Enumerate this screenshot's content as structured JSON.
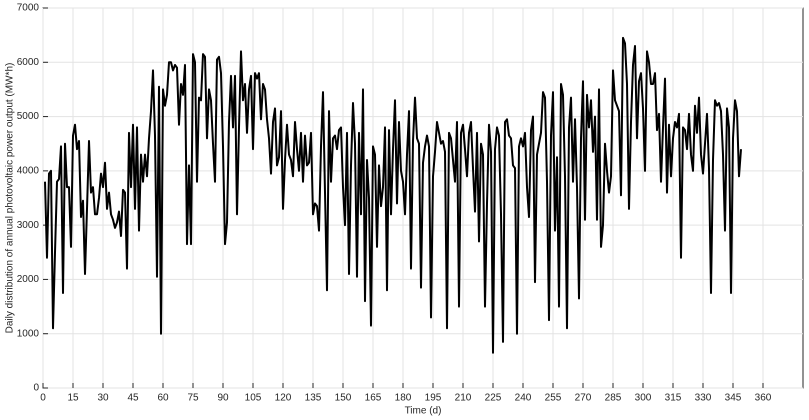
{
  "chart_data": {
    "type": "line",
    "x_label": "Time (d)",
    "y_label": "Daily distribution of annual photovoltaic power output (MW*h)",
    "color": "#000000",
    "grid": true,
    "xlim": [
      0,
      380
    ],
    "ylim": [
      0,
      7000
    ],
    "xticks": [
      0,
      15,
      30,
      45,
      60,
      75,
      90,
      105,
      120,
      135,
      150,
      165,
      180,
      195,
      210,
      225,
      240,
      255,
      270,
      285,
      300,
      315,
      330,
      345,
      360
    ],
    "yticks": [
      0,
      1000,
      2000,
      3000,
      4000,
      5000,
      6000,
      7000
    ],
    "x": [
      1,
      2,
      3,
      4,
      5,
      6,
      7,
      8,
      9,
      10,
      11,
      12,
      13,
      14,
      15,
      16,
      17,
      18,
      19,
      20,
      21,
      22,
      23,
      24,
      25,
      26,
      27,
      28,
      29,
      30,
      31,
      32,
      33,
      34,
      35,
      36,
      37,
      38,
      39,
      40,
      41,
      42,
      43,
      44,
      45,
      46,
      47,
      48,
      49,
      50,
      51,
      52,
      53,
      54,
      55,
      56,
      57,
      58,
      59,
      60,
      61,
      62,
      63,
      64,
      65,
      66,
      67,
      68,
      69,
      70,
      71,
      72,
      73,
      74,
      75,
      76,
      77,
      78,
      79,
      80,
      81,
      82,
      83,
      84,
      85,
      86,
      87,
      88,
      89,
      90,
      91,
      92,
      93,
      94,
      95,
      96,
      97,
      98,
      99,
      100,
      101,
      102,
      103,
      104,
      105,
      106,
      107,
      108,
      109,
      110,
      111,
      112,
      113,
      114,
      115,
      116,
      117,
      118,
      119,
      120,
      121,
      122,
      123,
      124,
      125,
      126,
      127,
      128,
      129,
      130,
      131,
      132,
      133,
      134,
      135,
      136,
      137,
      138,
      139,
      140,
      141,
      142,
      143,
      144,
      145,
      146,
      147,
      148,
      149,
      150,
      151,
      152,
      153,
      154,
      155,
      156,
      157,
      158,
      159,
      160,
      161,
      162,
      163,
      164,
      165,
      166,
      167,
      168,
      169,
      170,
      171,
      172,
      173,
      174,
      175,
      176,
      177,
      178,
      179,
      180,
      181,
      182,
      183,
      184,
      185,
      186,
      187,
      188,
      189,
      190,
      191,
      192,
      193,
      194,
      195,
      196,
      197,
      198,
      199,
      200,
      201,
      202,
      203,
      204,
      205,
      206,
      207,
      208,
      209,
      210,
      211,
      212,
      213,
      214,
      215,
      216,
      217,
      218,
      219,
      220,
      221,
      222,
      223,
      224,
      225,
      226,
      227,
      228,
      229,
      230,
      231,
      232,
      233,
      234,
      235,
      236,
      237,
      238,
      239,
      240,
      241,
      242,
      243,
      244,
      245,
      246,
      247,
      248,
      249,
      250,
      251,
      252,
      253,
      254,
      255,
      256,
      257,
      258,
      259,
      260,
      261,
      262,
      263,
      264,
      265,
      266,
      267,
      268,
      269,
      270,
      271,
      272,
      273,
      274,
      275,
      276,
      277,
      278,
      279,
      280,
      281,
      282,
      283,
      284,
      285,
      286,
      287,
      288,
      289,
      290,
      291,
      292,
      293,
      294,
      295,
      296,
      297,
      298,
      299,
      300,
      301,
      302,
      303,
      304,
      305,
      306,
      307,
      308,
      309,
      310,
      311,
      312,
      313,
      314,
      315,
      316,
      317,
      318,
      319,
      320,
      321,
      322,
      323,
      324,
      325,
      326,
      327,
      328,
      329,
      330,
      331,
      332,
      333,
      334,
      335,
      336,
      337,
      338,
      339,
      340,
      341,
      342,
      343,
      344,
      345,
      346,
      347,
      348,
      349
    ],
    "values": [
      3800,
      2400,
      3950,
      4000,
      1100,
      2500,
      3800,
      3850,
      4450,
      1750,
      4500,
      3700,
      3700,
      2600,
      4650,
      4850,
      4400,
      4550,
      3150,
      3450,
      2100,
      3300,
      4550,
      3600,
      3700,
      3200,
      3200,
      3500,
      3950,
      3700,
      4150,
      3300,
      3600,
      3200,
      3100,
      2950,
      3050,
      3250,
      2800,
      3650,
      3600,
      2200,
      4700,
      3700,
      4850,
      3300,
      4800,
      2900,
      4300,
      3800,
      4300,
      3900,
      4600,
      5100,
      5850,
      4650,
      2050,
      5550,
      1000,
      5500,
      5200,
      5400,
      6000,
      6000,
      5850,
      5950,
      5900,
      4850,
      5600,
      5400,
      5950,
      2650,
      4100,
      2650,
      6150,
      6000,
      3800,
      5350,
      5300,
      6150,
      6100,
      4600,
      5500,
      5300,
      4500,
      3800,
      6050,
      6100,
      5800,
      4450,
      2650,
      3050,
      4900,
      5750,
      4800,
      5750,
      3200,
      4800,
      6200,
      5300,
      5600,
      4700,
      5500,
      5750,
      4400,
      5800,
      5700,
      5800,
      4950,
      5600,
      5500,
      4950,
      4600,
      3950,
      4900,
      5150,
      4100,
      4250,
      5100,
      3300,
      4200,
      4850,
      4300,
      4200,
      3900,
      4900,
      4400,
      4000,
      4700,
      3800,
      4650,
      4100,
      4150,
      4700,
      3200,
      3400,
      3350,
      2900,
      4450,
      5450,
      3600,
      1800,
      5100,
      3800,
      4600,
      4650,
      4400,
      4750,
      4800,
      3700,
      3000,
      4700,
      2100,
      4100,
      5250,
      4500,
      2050,
      4700,
      3200,
      5500,
      1600,
      4200,
      3500,
      1150,
      4450,
      4300,
      2600,
      4100,
      3350,
      3700,
      4800,
      1800,
      4750,
      3200,
      4400,
      5300,
      3400,
      4900,
      4000,
      3800,
      3200,
      4300,
      5100,
      2200,
      4550,
      5350,
      4600,
      4500,
      1850,
      4150,
      4450,
      4650,
      4450,
      1300,
      3900,
      4350,
      4900,
      4700,
      4500,
      4550,
      4350,
      1100,
      4700,
      4600,
      4200,
      3800,
      4900,
      1500,
      4700,
      4850,
      4400,
      3900,
      4700,
      4900,
      4050,
      3250,
      4700,
      2700,
      4500,
      4300,
      1500,
      3400,
      4850,
      4350,
      650,
      4400,
      4800,
      4650,
      3200,
      850,
      4900,
      4950,
      4650,
      4600,
      4100,
      4050,
      1000,
      4450,
      4600,
      4450,
      4700,
      3700,
      3150,
      4750,
      5000,
      1950,
      4300,
      4500,
      4700,
      5450,
      5350,
      3800,
      1250,
      4650,
      5450,
      2900,
      4250,
      1500,
      5600,
      5400,
      3900,
      1100,
      4800,
      5350,
      3800,
      4950,
      3700,
      1650,
      4600,
      5650,
      3100,
      5400,
      4800,
      5300,
      4350,
      5000,
      3100,
      5500,
      2600,
      3000,
      4500,
      4000,
      3600,
      3900,
      5850,
      5300,
      5200,
      5100,
      3550,
      6450,
      6350,
      5600,
      3300,
      4900,
      5950,
      6300,
      4600,
      5650,
      5800,
      5150,
      4000,
      6200,
      6000,
      5600,
      5600,
      5800,
      4750,
      5050,
      3800,
      4800,
      5700,
      3600,
      4850,
      3900,
      4600,
      4900,
      4800,
      5050,
      2400,
      4800,
      4750,
      4400,
      5050,
      4300,
      4000,
      5200,
      4700,
      5350,
      4300,
      3950,
      4500,
      5050,
      4050,
      1750,
      4200,
      5300,
      5200,
      5250,
      5100,
      4300,
      2900,
      5150,
      4800,
      1750,
      4600,
      5300,
      5100,
      3900,
      4400
    ]
  }
}
